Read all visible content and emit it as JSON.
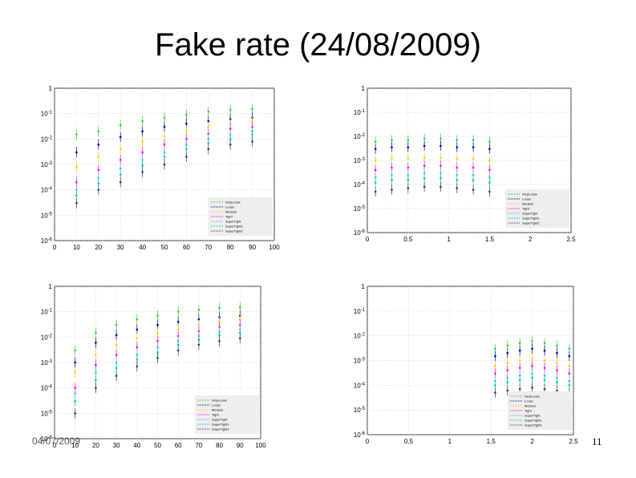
{
  "slide": {
    "title": "Fake rate (24/08/2009)",
    "date": "04/07/2009",
    "page_number": "11"
  },
  "legend_styles": {
    "colors": [
      "#33cc33",
      "#000099",
      "#ffcc00",
      "#ff00ff",
      "#33cccc",
      "#00cc99",
      "#333366"
    ]
  },
  "chart_data": [
    {
      "type": "scatter",
      "title": "",
      "xlabel": "",
      "ylabel": "",
      "log_y": true,
      "xlim": [
        0,
        100
      ],
      "ylim": [
        1e-06,
        1
      ],
      "x_ticks": [
        "0",
        "10",
        "20",
        "30",
        "40",
        "50",
        "60",
        "70",
        "80",
        "90",
        "100"
      ],
      "y_ticks": [
        "10^-6",
        "10^-5",
        "10^-4",
        "10^-3",
        "10^-2",
        "10^-1",
        "1"
      ],
      "grid": true,
      "legend": "bottom-right",
      "series": [
        {
          "name": "VeryLoose",
          "x": [
            10,
            20,
            30,
            40,
            50,
            60,
            70,
            80,
            90
          ],
          "y": [
            0.015,
            0.02,
            0.035,
            0.05,
            0.07,
            0.09,
            0.12,
            0.14,
            0.15
          ]
        },
        {
          "name": "Loose",
          "x": [
            10,
            20,
            30,
            40,
            50,
            60,
            70,
            80,
            90
          ],
          "y": [
            0.003,
            0.006,
            0.012,
            0.02,
            0.03,
            0.04,
            0.05,
            0.06,
            0.07
          ]
        },
        {
          "name": "Medium",
          "x": [
            10,
            20,
            30,
            40,
            50,
            60,
            70,
            80,
            90
          ],
          "y": [
            0.0008,
            0.002,
            0.004,
            0.008,
            0.013,
            0.02,
            0.03,
            0.04,
            0.05
          ]
        },
        {
          "name": "Tight",
          "x": [
            10,
            20,
            30,
            40,
            50,
            60,
            70,
            80,
            90
          ],
          "y": [
            0.0002,
            0.0006,
            0.0015,
            0.003,
            0.006,
            0.01,
            0.016,
            0.025,
            0.03
          ]
        },
        {
          "name": "SuperTight",
          "x": [
            10,
            20,
            30,
            40,
            50,
            60,
            70,
            80,
            90
          ],
          "y": [
            0.0001,
            0.0003,
            0.0007,
            0.0015,
            0.003,
            0.006,
            0.01,
            0.015,
            0.02
          ]
        },
        {
          "name": "SuperTight1",
          "x": [
            10,
            20,
            30,
            40,
            50,
            60,
            70,
            80,
            90
          ],
          "y": [
            6e-05,
            0.00018,
            0.0004,
            0.0009,
            0.002,
            0.004,
            0.007,
            0.01,
            0.015
          ]
        },
        {
          "name": "SuperTight2",
          "x": [
            10,
            20,
            30,
            40,
            50,
            60,
            70,
            80,
            90
          ],
          "y": [
            3e-05,
            0.0001,
            0.0002,
            0.0005,
            0.001,
            0.002,
            0.004,
            0.006,
            0.008
          ]
        }
      ]
    },
    {
      "type": "scatter",
      "title": "",
      "xlabel": "",
      "ylabel": "",
      "log_y": true,
      "xlim": [
        0,
        2.5
      ],
      "ylim": [
        1e-06,
        1
      ],
      "x_ticks": [
        "0",
        "0.5",
        "1",
        "1.5",
        "2",
        "2.5"
      ],
      "y_ticks": [
        "10^-6",
        "10^-5",
        "10^-4",
        "10^-3",
        "10^-2",
        "10^-1",
        "1"
      ],
      "grid": true,
      "legend": "bottom-right",
      "series": [
        {
          "name": "VeryLoose",
          "x": [
            0.1,
            0.3,
            0.5,
            0.7,
            0.9,
            1.1,
            1.3,
            1.5
          ],
          "y": [
            0.006,
            0.007,
            0.007,
            0.008,
            0.008,
            0.007,
            0.007,
            0.006
          ]
        },
        {
          "name": "Loose",
          "x": [
            0.1,
            0.3,
            0.5,
            0.7,
            0.9,
            1.1,
            1.3,
            1.5
          ],
          "y": [
            0.003,
            0.0035,
            0.0035,
            0.004,
            0.004,
            0.0035,
            0.0035,
            0.003
          ]
        },
        {
          "name": "Medium",
          "x": [
            0.1,
            0.3,
            0.5,
            0.7,
            0.9,
            1.1,
            1.3,
            1.5
          ],
          "y": [
            0.001,
            0.0012,
            0.0012,
            0.0013,
            0.0013,
            0.0012,
            0.0012,
            0.001
          ]
        },
        {
          "name": "Tight",
          "x": [
            0.1,
            0.3,
            0.5,
            0.7,
            0.9,
            1.1,
            1.3,
            1.5
          ],
          "y": [
            0.0004,
            0.0005,
            0.0005,
            0.0006,
            0.0006,
            0.0005,
            0.0005,
            0.0004
          ]
        },
        {
          "name": "SuperTight",
          "x": [
            0.1,
            0.3,
            0.5,
            0.7,
            0.9,
            1.1,
            1.3,
            1.5
          ],
          "y": [
            0.0002,
            0.00025,
            0.00025,
            0.0003,
            0.0003,
            0.00025,
            0.00025,
            0.0002
          ]
        },
        {
          "name": "SuperTight1",
          "x": [
            0.1,
            0.3,
            0.5,
            0.7,
            0.9,
            1.1,
            1.3,
            1.5
          ],
          "y": [
            0.00012,
            0.00015,
            0.00015,
            0.00018,
            0.00018,
            0.00015,
            0.00015,
            0.00012
          ]
        },
        {
          "name": "SuperTight2",
          "x": [
            0.1,
            0.3,
            0.5,
            0.7,
            0.9,
            1.1,
            1.3,
            1.5
          ],
          "y": [
            5e-05,
            6e-05,
            7e-05,
            8e-05,
            8e-05,
            7e-05,
            6e-05,
            5e-05
          ]
        }
      ]
    },
    {
      "type": "scatter",
      "title": "",
      "xlabel": "",
      "ylabel": "",
      "log_y": true,
      "xlim": [
        0,
        100
      ],
      "ylim": [
        1e-06,
        1
      ],
      "x_ticks": [
        "0",
        "10",
        "20",
        "30",
        "40",
        "50",
        "60",
        "70",
        "80",
        "90",
        "100"
      ],
      "y_ticks": [
        "10^-6",
        "10^-5",
        "10^-4",
        "10^-3",
        "10^-2",
        "10^-1",
        "1"
      ],
      "grid": true,
      "legend": "bottom-right",
      "series": [
        {
          "name": "VeryLoose",
          "x": [
            10,
            20,
            30,
            40,
            50,
            60,
            70,
            80,
            90
          ],
          "y": [
            0.003,
            0.015,
            0.03,
            0.05,
            0.07,
            0.1,
            0.12,
            0.14,
            0.15
          ]
        },
        {
          "name": "Loose",
          "x": [
            10,
            20,
            30,
            40,
            50,
            60,
            70,
            80,
            90
          ],
          "y": [
            0.001,
            0.006,
            0.012,
            0.02,
            0.03,
            0.04,
            0.05,
            0.06,
            0.07
          ]
        },
        {
          "name": "Medium",
          "x": [
            10,
            20,
            30,
            40,
            50,
            60,
            70,
            80,
            90
          ],
          "y": [
            0.0004,
            0.002,
            0.005,
            0.009,
            0.014,
            0.02,
            0.03,
            0.04,
            0.05
          ]
        },
        {
          "name": "Tight",
          "x": [
            10,
            20,
            30,
            40,
            50,
            60,
            70,
            80,
            90
          ],
          "y": [
            0.0001,
            0.0008,
            0.002,
            0.004,
            0.007,
            0.011,
            0.017,
            0.025,
            0.03
          ]
        },
        {
          "name": "SuperTight",
          "x": [
            10,
            20,
            30,
            40,
            50,
            60,
            70,
            80,
            90
          ],
          "y": [
            6e-05,
            0.0004,
            0.001,
            0.002,
            0.004,
            0.007,
            0.011,
            0.016,
            0.02
          ]
        },
        {
          "name": "SuperTight1",
          "x": [
            10,
            20,
            30,
            40,
            50,
            60,
            70,
            80,
            90
          ],
          "y": [
            3e-05,
            0.0002,
            0.0006,
            0.0013,
            0.0025,
            0.005,
            0.008,
            0.012,
            0.015
          ]
        },
        {
          "name": "SuperTight2",
          "x": [
            10,
            20,
            30,
            40,
            50,
            60,
            70,
            80,
            90
          ],
          "y": [
            1e-05,
            0.0001,
            0.0003,
            0.0007,
            0.0015,
            0.003,
            0.005,
            0.007,
            0.009
          ]
        }
      ]
    },
    {
      "type": "scatter",
      "title": "",
      "xlabel": "",
      "ylabel": "",
      "log_y": true,
      "xlim": [
        0,
        2.5
      ],
      "ylim": [
        1e-06,
        1
      ],
      "x_ticks": [
        "0",
        "0.5",
        "1",
        "1.5",
        "2",
        "2.5"
      ],
      "y_ticks": [
        "10^-6",
        "10^-5",
        "10^-4",
        "10^-3",
        "10^-2",
        "10^-1",
        "1"
      ],
      "grid": true,
      "legend": "bottom-right",
      "series": [
        {
          "name": "VeryLoose",
          "x": [
            1.55,
            1.7,
            1.85,
            2.0,
            2.15,
            2.3,
            2.45
          ],
          "y": [
            0.003,
            0.004,
            0.005,
            0.006,
            0.005,
            0.004,
            0.003
          ]
        },
        {
          "name": "Loose",
          "x": [
            1.55,
            1.7,
            1.85,
            2.0,
            2.15,
            2.3,
            2.45
          ],
          "y": [
            0.0015,
            0.002,
            0.0025,
            0.003,
            0.0025,
            0.002,
            0.0015
          ]
        },
        {
          "name": "Medium",
          "x": [
            1.55,
            1.7,
            1.85,
            2.0,
            2.15,
            2.3,
            2.45
          ],
          "y": [
            0.0006,
            0.0008,
            0.001,
            0.0012,
            0.001,
            0.0008,
            0.0006
          ]
        },
        {
          "name": "Tight",
          "x": [
            1.55,
            1.7,
            1.85,
            2.0,
            2.15,
            2.3,
            2.45
          ],
          "y": [
            0.0003,
            0.0004,
            0.0005,
            0.0006,
            0.0005,
            0.0004,
            0.0003
          ]
        },
        {
          "name": "SuperTight",
          "x": [
            1.55,
            1.7,
            1.85,
            2.0,
            2.15,
            2.3,
            2.45
          ],
          "y": [
            0.00015,
            0.0002,
            0.00025,
            0.0003,
            0.00025,
            0.0002,
            0.00015
          ]
        },
        {
          "name": "SuperTight1",
          "x": [
            1.55,
            1.7,
            1.85,
            2.0,
            2.15,
            2.3,
            2.45
          ],
          "y": [
            0.0001,
            0.00013,
            0.00016,
            0.0002,
            0.00016,
            0.00013,
            0.0001
          ]
        },
        {
          "name": "SuperTight2",
          "x": [
            1.55,
            1.7,
            1.85,
            2.0,
            2.15,
            2.3,
            2.45
          ],
          "y": [
            5e-05,
            6e-05,
            7e-05,
            8e-05,
            7e-05,
            6e-05,
            5e-05
          ]
        }
      ]
    }
  ]
}
